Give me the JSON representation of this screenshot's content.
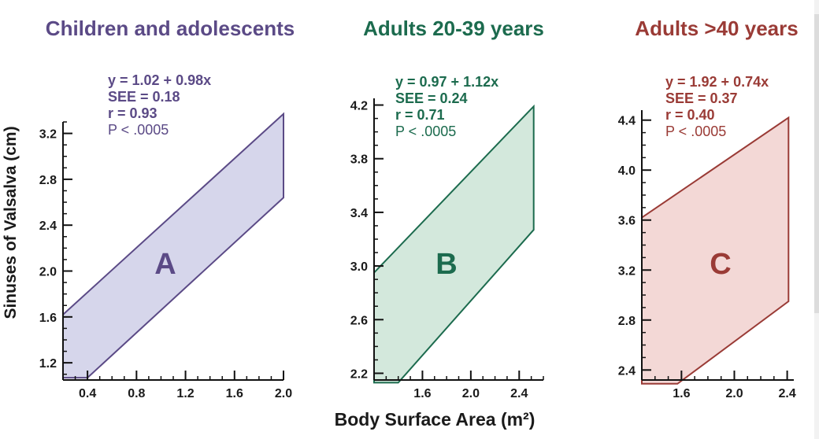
{
  "figure": {
    "y_axis_label": "Sinuses of Valsalva (cm)",
    "x_axis_label": "Body Surface Area (m²)"
  },
  "chart_data": [
    {
      "type": "area",
      "title": "Children and adolescents",
      "panel_letter": "A",
      "color": "#5b4a86",
      "fill": "#d6d6eb",
      "xlim": [
        0.2,
        2.0
      ],
      "ylim": [
        1.05,
        3.3
      ],
      "x_ticks": [
        "0.4",
        "0.8",
        "1.2",
        "1.6",
        "2.0"
      ],
      "y_ticks": [
        "1.2",
        "1.6",
        "2.0",
        "2.4",
        "2.8",
        "3.2"
      ],
      "stats": [
        "y = 1.02 + 0.98x",
        "SEE = 0.18",
        "r = 0.93",
        "P < .0005"
      ],
      "band_polygon": [
        [
          0.2,
          1.62
        ],
        [
          2.0,
          3.37
        ],
        [
          2.0,
          2.64
        ],
        [
          0.4,
          1.07
        ],
        [
          0.2,
          1.07
        ]
      ]
    },
    {
      "type": "area",
      "title": "Adults 20-39 years",
      "panel_letter": "B",
      "color": "#1c6b4e",
      "fill": "#d3e8dc",
      "xlim": [
        1.2,
        2.6
      ],
      "ylim": [
        2.15,
        4.25
      ],
      "x_ticks": [
        "1.6",
        "2.0",
        "2.4"
      ],
      "y_ticks": [
        "2.2",
        "2.6",
        "3.0",
        "3.4",
        "3.8",
        "4.2"
      ],
      "stats": [
        "y = 0.97 + 1.12x",
        "SEE = 0.24",
        "r = 0.71",
        "P < .0005"
      ],
      "band_polygon": [
        [
          1.2,
          2.95
        ],
        [
          2.52,
          4.19
        ],
        [
          2.52,
          3.27
        ],
        [
          1.4,
          2.13
        ],
        [
          1.2,
          2.13
        ]
      ]
    },
    {
      "type": "area",
      "title": "Adults >40 years",
      "panel_letter": "C",
      "color": "#9a3b36",
      "fill": "#f3d8d6",
      "xlim": [
        1.3,
        2.45
      ],
      "ylim": [
        2.32,
        4.48
      ],
      "x_ticks": [
        "1.6",
        "2.0",
        "2.4"
      ],
      "y_ticks": [
        "2.4",
        "2.8",
        "3.2",
        "3.6",
        "4.0",
        "4.4"
      ],
      "stats": [
        "y = 1.92 + 0.74x",
        "SEE = 0.37",
        "r = 0.40",
        "P < .0005"
      ],
      "band_polygon": [
        [
          1.3,
          3.62
        ],
        [
          2.41,
          4.42
        ],
        [
          2.41,
          2.95
        ],
        [
          1.57,
          2.29
        ],
        [
          1.3,
          2.29
        ]
      ]
    }
  ]
}
